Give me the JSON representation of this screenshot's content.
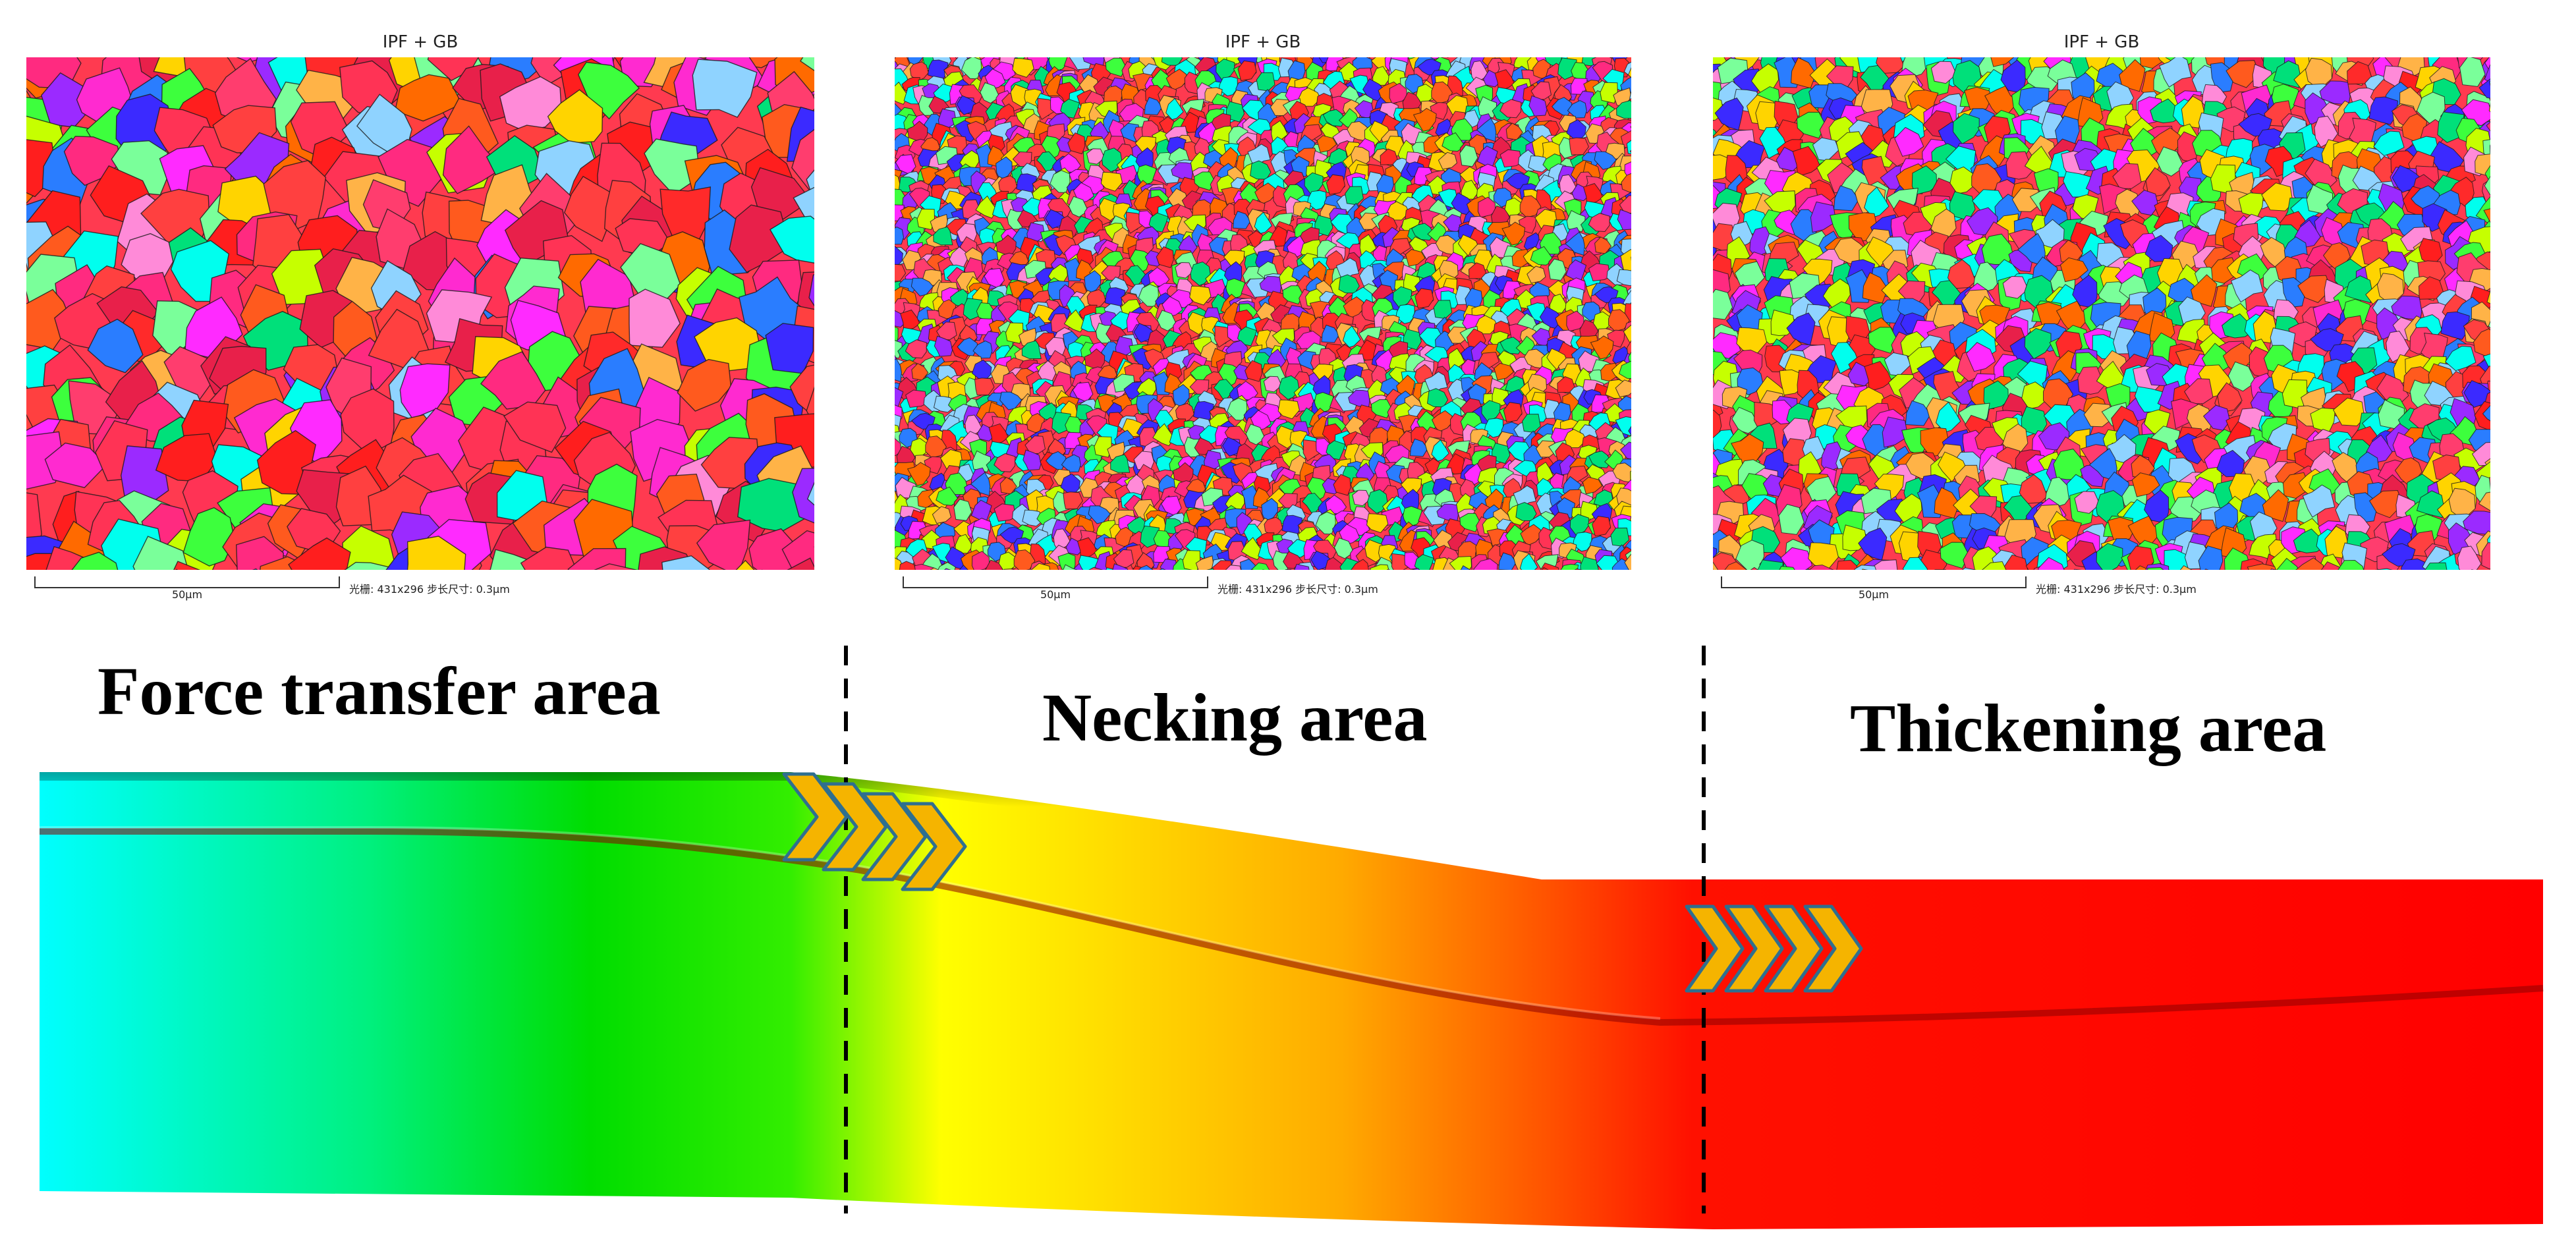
{
  "panels": [
    {
      "title": "IPF + GB",
      "scale_label": "50μm",
      "meta": "光栅: 431x296   步长尺寸: 0.3μm",
      "grain_size": "coarse"
    },
    {
      "title": "IPF + GB",
      "scale_label": "50μm",
      "meta": "光栅: 431x296   步长尺寸: 0.3μm",
      "grain_size": "fine"
    },
    {
      "title": "IPF + GB",
      "scale_label": "50μm",
      "meta": "光栅: 431x296   步长尺寸: 0.3μm",
      "grain_size": "medium"
    }
  ],
  "zones": [
    {
      "label": "Force transfer area"
    },
    {
      "label": "Necking area"
    },
    {
      "label": "Thickening area"
    }
  ],
  "colors": {
    "gradient": [
      "#00ffff",
      "#00e000",
      "#ffff00",
      "#ff9900",
      "#ff0000"
    ],
    "chevron_fill": "#f5b400",
    "chevron_stroke": "#2f6f8f",
    "divider": "#000000"
  },
  "icons": [
    "chevron-arrow-icon"
  ]
}
